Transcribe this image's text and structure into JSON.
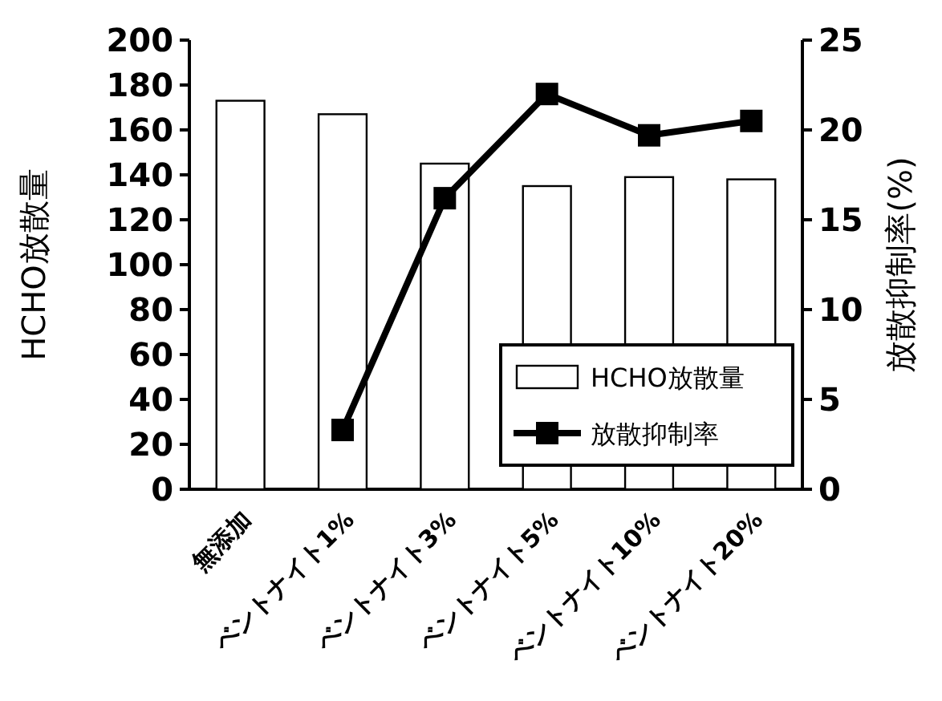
{
  "chart_data": {
    "type": "bar",
    "ylabel": "HCHO放散量",
    "y2label": "放散抑制率(%)",
    "categories": [
      "無添加",
      "ベントナイト1%",
      "ベントナイト3%",
      "ベントナイト5%",
      "ベントナイト10%",
      "ベントナイト20%"
    ],
    "series": [
      {
        "name": "HCHO放散量",
        "color": "#ffffff",
        "values": [
          173,
          167,
          145,
          135,
          139,
          138
        ]
      },
      {
        "name": "放散抑制率",
        "type": "line",
        "axis": "y2",
        "color": "#000000",
        "marker": "square",
        "values": [
          null,
          3.3,
          16.2,
          22,
          19.7,
          20.5
        ]
      }
    ],
    "ylim": [
      0,
      200
    ],
    "yticks": [
      0,
      20,
      40,
      60,
      80,
      100,
      120,
      140,
      160,
      180,
      200
    ],
    "y2lim": [
      0,
      25
    ],
    "y2ticks": [
      0,
      5,
      10,
      15,
      20,
      25
    ],
    "legend": "bottom right",
    "grid": false
  }
}
